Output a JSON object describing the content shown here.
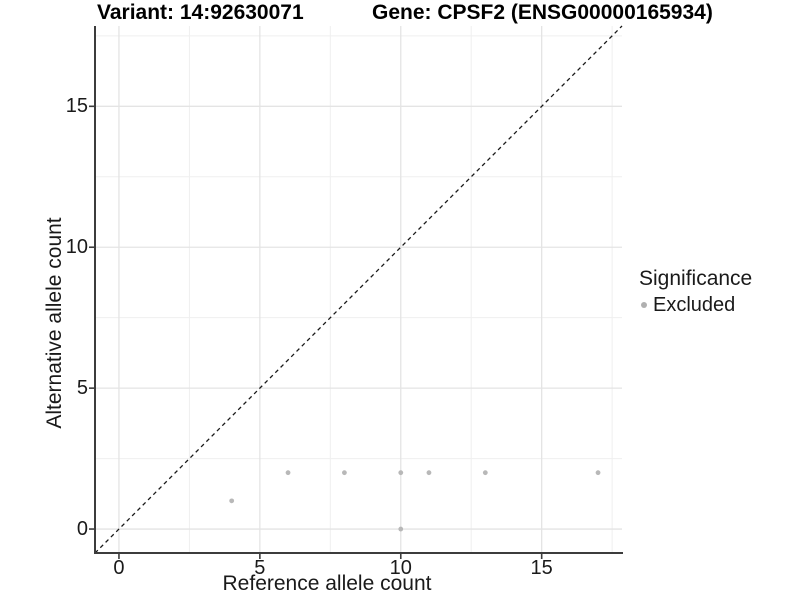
{
  "titles": {
    "left": "Variant: 14:92630071",
    "right": "Gene: CPSF2 (ENSG00000165934)"
  },
  "chart_data": {
    "type": "scatter",
    "xlabel": "Reference allele count",
    "ylabel": "Alternative allele count",
    "xlim": [
      -0.85,
      17.85
    ],
    "ylim": [
      -0.85,
      17.85
    ],
    "xticks": [
      0,
      5,
      10,
      15
    ],
    "yticks": [
      0,
      5,
      10,
      15
    ],
    "xminor": [
      2.5,
      7.5,
      12.5,
      17.5
    ],
    "yminor": [
      2.5,
      7.5,
      12.5,
      17.5
    ],
    "grid": true,
    "identity_line": {
      "show": true,
      "style": "dashed",
      "color": "#1a1a1a"
    },
    "series": [
      {
        "name": "Excluded",
        "color": "#b8b8b8",
        "marker": "circle",
        "points": [
          [
            4,
            1
          ],
          [
            6,
            2
          ],
          [
            8,
            2
          ],
          [
            10,
            0
          ],
          [
            10,
            2
          ],
          [
            11,
            2
          ],
          [
            13,
            2
          ],
          [
            17,
            2
          ]
        ]
      }
    ],
    "legend": {
      "title": "Significance",
      "position": "right",
      "entries": [
        {
          "label": "Excluded",
          "color": "#b0b0b0"
        }
      ]
    },
    "style": {
      "grid_major": "#e4e4e4",
      "grid_minor": "#efefef",
      "axis_line": "#3c3c3c",
      "tick_color": "#3c3c3c",
      "background": "#ffffff"
    }
  }
}
